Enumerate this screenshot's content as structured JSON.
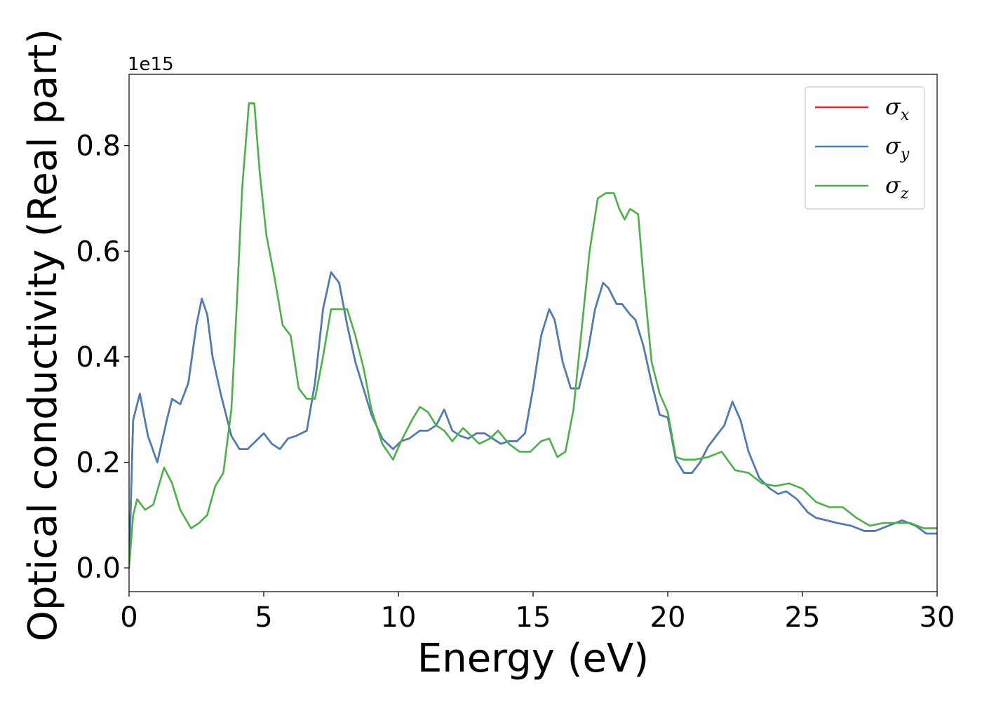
{
  "chart_data": {
    "type": "line",
    "xlabel": "Energy (eV)",
    "ylabel": "Optical conductivity (Real part)",
    "y_offset_text": "1e15",
    "xlim": [
      0,
      30
    ],
    "ylim": [
      -0.045,
      0.935
    ],
    "xticks": [
      0,
      5,
      10,
      15,
      20,
      25,
      30
    ],
    "xtick_labels": [
      "0",
      "5",
      "10",
      "15",
      "20",
      "25",
      "30"
    ],
    "yticks": [
      0.0,
      0.2,
      0.4,
      0.6,
      0.8
    ],
    "ytick_labels": [
      "0.0",
      "0.2",
      "0.4",
      "0.6",
      "0.8"
    ],
    "grid": false,
    "legend_position": "top-right",
    "series": [
      {
        "name": "σx",
        "legend_symbol": "σ",
        "legend_sub": "x",
        "color": "#d62728",
        "x": [
          0,
          0.15,
          0.4,
          0.7,
          1.05,
          1.4,
          1.6,
          1.9,
          2.2,
          2.5,
          2.7,
          2.9,
          3.1,
          3.4,
          3.8,
          4.1,
          4.4,
          4.7,
          5.0,
          5.3,
          5.6,
          5.9,
          6.2,
          6.6,
          6.9,
          7.2,
          7.5,
          7.8,
          8.1,
          8.4,
          8.7,
          9.0,
          9.4,
          9.8,
          10.1,
          10.4,
          10.8,
          11.1,
          11.4,
          11.7,
          12.0,
          12.3,
          12.6,
          12.9,
          13.2,
          13.5,
          13.8,
          14.1,
          14.4,
          14.7,
          15.0,
          15.3,
          15.6,
          15.8,
          16.1,
          16.4,
          16.7,
          17.0,
          17.3,
          17.6,
          17.8,
          18.1,
          18.3,
          18.6,
          18.8,
          19.1,
          19.4,
          19.7,
          20.0,
          20.3,
          20.6,
          20.9,
          21.2,
          21.5,
          21.8,
          22.1,
          22.4,
          22.7,
          23.0,
          23.4,
          23.8,
          24.1,
          24.4,
          24.8,
          25.2,
          25.5,
          25.9,
          26.3,
          26.8,
          27.3,
          27.7,
          28.2,
          28.7,
          29.2,
          29.6,
          30.0
        ],
        "y": [
          0.0,
          0.28,
          0.33,
          0.25,
          0.2,
          0.28,
          0.32,
          0.31,
          0.35,
          0.46,
          0.51,
          0.48,
          0.4,
          0.33,
          0.25,
          0.225,
          0.225,
          0.24,
          0.255,
          0.235,
          0.225,
          0.245,
          0.25,
          0.26,
          0.35,
          0.49,
          0.56,
          0.54,
          0.46,
          0.39,
          0.34,
          0.29,
          0.245,
          0.225,
          0.24,
          0.245,
          0.26,
          0.26,
          0.27,
          0.3,
          0.26,
          0.25,
          0.245,
          0.255,
          0.255,
          0.245,
          0.235,
          0.24,
          0.24,
          0.255,
          0.34,
          0.44,
          0.49,
          0.47,
          0.39,
          0.34,
          0.34,
          0.4,
          0.49,
          0.54,
          0.53,
          0.5,
          0.5,
          0.48,
          0.47,
          0.42,
          0.35,
          0.29,
          0.285,
          0.205,
          0.18,
          0.18,
          0.2,
          0.23,
          0.25,
          0.27,
          0.315,
          0.28,
          0.22,
          0.17,
          0.15,
          0.14,
          0.145,
          0.13,
          0.105,
          0.095,
          0.09,
          0.085,
          0.08,
          0.07,
          0.07,
          0.08,
          0.09,
          0.08,
          0.065,
          0.065
        ]
      },
      {
        "name": "σy",
        "legend_symbol": "σ",
        "legend_sub": "y",
        "color": "#4a7fb5",
        "x": [
          0,
          0.15,
          0.4,
          0.7,
          1.05,
          1.4,
          1.6,
          1.9,
          2.2,
          2.5,
          2.7,
          2.9,
          3.1,
          3.4,
          3.8,
          4.1,
          4.4,
          4.7,
          5.0,
          5.3,
          5.6,
          5.9,
          6.2,
          6.6,
          6.9,
          7.2,
          7.5,
          7.8,
          8.1,
          8.4,
          8.7,
          9.0,
          9.4,
          9.8,
          10.1,
          10.4,
          10.8,
          11.1,
          11.4,
          11.7,
          12.0,
          12.3,
          12.6,
          12.9,
          13.2,
          13.5,
          13.8,
          14.1,
          14.4,
          14.7,
          15.0,
          15.3,
          15.6,
          15.8,
          16.1,
          16.4,
          16.7,
          17.0,
          17.3,
          17.6,
          17.8,
          18.1,
          18.3,
          18.6,
          18.8,
          19.1,
          19.4,
          19.7,
          20.0,
          20.3,
          20.6,
          20.9,
          21.2,
          21.5,
          21.8,
          22.1,
          22.4,
          22.7,
          23.0,
          23.4,
          23.8,
          24.1,
          24.4,
          24.8,
          25.2,
          25.5,
          25.9,
          26.3,
          26.8,
          27.3,
          27.7,
          28.2,
          28.7,
          29.2,
          29.6,
          30.0
        ],
        "y": [
          0.0,
          0.28,
          0.33,
          0.25,
          0.2,
          0.28,
          0.32,
          0.31,
          0.35,
          0.46,
          0.51,
          0.48,
          0.4,
          0.33,
          0.25,
          0.225,
          0.225,
          0.24,
          0.255,
          0.235,
          0.225,
          0.245,
          0.25,
          0.26,
          0.35,
          0.49,
          0.56,
          0.54,
          0.46,
          0.39,
          0.34,
          0.29,
          0.245,
          0.225,
          0.24,
          0.245,
          0.26,
          0.26,
          0.27,
          0.3,
          0.26,
          0.25,
          0.245,
          0.255,
          0.255,
          0.245,
          0.235,
          0.24,
          0.24,
          0.255,
          0.34,
          0.44,
          0.49,
          0.47,
          0.39,
          0.34,
          0.34,
          0.4,
          0.49,
          0.54,
          0.53,
          0.5,
          0.5,
          0.48,
          0.47,
          0.42,
          0.35,
          0.29,
          0.285,
          0.205,
          0.18,
          0.18,
          0.2,
          0.23,
          0.25,
          0.27,
          0.315,
          0.28,
          0.22,
          0.17,
          0.15,
          0.14,
          0.145,
          0.13,
          0.105,
          0.095,
          0.09,
          0.085,
          0.08,
          0.07,
          0.07,
          0.08,
          0.09,
          0.08,
          0.065,
          0.065
        ]
      },
      {
        "name": "σz",
        "legend_symbol": "σ",
        "legend_sub": "z",
        "color": "#4daf4a",
        "x": [
          0,
          0.15,
          0.3,
          0.6,
          0.9,
          1.3,
          1.6,
          1.9,
          2.3,
          2.6,
          2.9,
          3.2,
          3.5,
          3.8,
          4.0,
          4.2,
          4.45,
          4.65,
          4.85,
          5.1,
          5.4,
          5.7,
          6.0,
          6.3,
          6.6,
          6.9,
          7.2,
          7.5,
          7.8,
          8.1,
          8.4,
          8.7,
          9.0,
          9.4,
          9.8,
          10.1,
          10.5,
          10.8,
          11.1,
          11.4,
          11.7,
          12.0,
          12.4,
          12.7,
          13.0,
          13.4,
          13.7,
          14.1,
          14.5,
          14.9,
          15.3,
          15.6,
          15.9,
          16.2,
          16.5,
          16.8,
          17.1,
          17.4,
          17.7,
          18.0,
          18.2,
          18.4,
          18.6,
          18.9,
          19.1,
          19.4,
          19.7,
          20.0,
          20.3,
          20.6,
          21.0,
          21.5,
          22.0,
          22.5,
          23.0,
          23.5,
          24.0,
          24.5,
          25.0,
          25.5,
          26.0,
          26.5,
          27.0,
          27.5,
          28.0,
          28.5,
          29.0,
          29.5,
          30.0
        ],
        "y": [
          0.0,
          0.1,
          0.13,
          0.11,
          0.12,
          0.19,
          0.16,
          0.11,
          0.075,
          0.085,
          0.1,
          0.155,
          0.18,
          0.3,
          0.5,
          0.72,
          0.88,
          0.88,
          0.75,
          0.63,
          0.55,
          0.46,
          0.44,
          0.34,
          0.32,
          0.32,
          0.4,
          0.49,
          0.49,
          0.49,
          0.44,
          0.38,
          0.3,
          0.235,
          0.205,
          0.24,
          0.28,
          0.305,
          0.295,
          0.27,
          0.26,
          0.24,
          0.265,
          0.25,
          0.235,
          0.245,
          0.26,
          0.235,
          0.22,
          0.22,
          0.24,
          0.245,
          0.21,
          0.22,
          0.3,
          0.45,
          0.6,
          0.7,
          0.71,
          0.71,
          0.68,
          0.66,
          0.68,
          0.67,
          0.55,
          0.39,
          0.33,
          0.295,
          0.21,
          0.205,
          0.205,
          0.21,
          0.22,
          0.185,
          0.18,
          0.16,
          0.155,
          0.16,
          0.15,
          0.125,
          0.115,
          0.115,
          0.095,
          0.08,
          0.085,
          0.085,
          0.085,
          0.075,
          0.075
        ]
      }
    ]
  }
}
